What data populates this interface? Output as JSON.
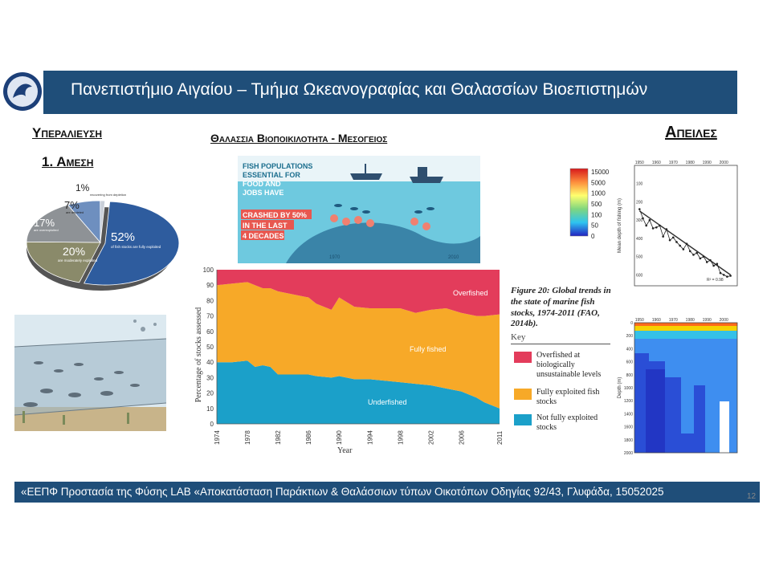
{
  "header": {
    "title": "Πανεπιστήμιο Αιγαίου – Τμήμα Ωκεανογραφίας και Θαλασσίων Βιοεπιστημών"
  },
  "section": {
    "left_title": "Υπεραλιευση",
    "sub_title": "1. Αμεση",
    "center_title": "Θαλασσια Βιοποικιλοτητα - Μεσογειος",
    "right_title": "Απειλες"
  },
  "pie": {
    "slices": [
      {
        "percent": "52%",
        "label": "of fish stocks are fully exploited",
        "value": 52,
        "color": "#2e5c9e"
      },
      {
        "percent": "20%",
        "label": "are moderately exploited",
        "value": 20,
        "color": "#8a8a6a"
      },
      {
        "percent": "17%",
        "label": "are overexploited",
        "value": 17,
        "color": "#8e9296"
      },
      {
        "percent": "7%",
        "label": "are depleted",
        "value": 7,
        "color": "#6e8fbf"
      },
      {
        "percent": "1%",
        "label": "recovering from depletion",
        "value": 1,
        "color": "#c9cfd8"
      }
    ]
  },
  "infographic": {
    "lines": [
      "FISH POPULATIONS",
      "ESSENTIAL FOR",
      "FOOD AND",
      "JOBS HAVE"
    ],
    "highlight_lines": [
      "CRASHED BY 50%",
      "IN THE LAST",
      "4 DECADES"
    ],
    "year_left": "1970",
    "year_right": "2010"
  },
  "chart_data": [
    {
      "type": "area",
      "xlabel": "Year",
      "ylabel": "Percentage of stocks assessed",
      "ylim": [
        0,
        100
      ],
      "yticks": [
        "0",
        "10",
        "20",
        "30",
        "40",
        "50",
        "60",
        "70",
        "80",
        "90",
        "100"
      ],
      "xticks": [
        "1974",
        "1978",
        "1982",
        "1986",
        "1990",
        "1994",
        "1998",
        "2002",
        "2006",
        "2011"
      ],
      "x": [
        1974,
        1976,
        1978,
        1979,
        1980,
        1981,
        1982,
        1984,
        1986,
        1987,
        1989,
        1990,
        1992,
        1994,
        1996,
        1998,
        2000,
        2002,
        2004,
        2006,
        2008,
        2009,
        2011
      ],
      "series": [
        {
          "name": "Underfished",
          "values": [
            40,
            40,
            41,
            37,
            38,
            37,
            32,
            32,
            32,
            31,
            30,
            31,
            29,
            29,
            28,
            27,
            26,
            25,
            23,
            21,
            17,
            14,
            10
          ],
          "color": "#1ba0c9"
        },
        {
          "name": "Fully fished",
          "values": [
            50,
            51,
            51,
            53,
            50,
            51,
            54,
            52,
            50,
            47,
            44,
            51,
            47,
            46,
            47,
            48,
            46,
            49,
            52,
            51,
            53,
            56,
            61
          ],
          "color": "#f7a928"
        },
        {
          "name": "Overfished",
          "values": [
            10,
            9,
            8,
            10,
            12,
            12,
            14,
            16,
            18,
            22,
            26,
            18,
            24,
            25,
            25,
            25,
            28,
            26,
            25,
            28,
            30,
            30,
            29
          ],
          "color": "#e33c5b"
        }
      ],
      "caption": "Figure 20: Global trends in the state of marine fish stocks, 1974-2011 (FAO, 2014b).",
      "key_title": "Key",
      "key": [
        {
          "label": "Overfished at biologically unsustainable levels",
          "color": "#e33c5b"
        },
        {
          "label": "Fully exploited fish stocks",
          "color": "#f7a928"
        },
        {
          "label": "Not fully exploited stocks",
          "color": "#1ba0c9"
        }
      ]
    },
    {
      "type": "scatter",
      "ylabel": "Mean depth of fishing (m)",
      "xticks": [
        "1950",
        "1960",
        "1970",
        "1980",
        "1990",
        "2000"
      ],
      "yticks": [
        "100",
        "200",
        "300",
        "400",
        "500",
        "600"
      ],
      "x": [
        1950,
        1952,
        1954,
        1956,
        1958,
        1960,
        1962,
        1964,
        1966,
        1968,
        1970,
        1972,
        1974,
        1976,
        1978,
        1980,
        1982,
        1984,
        1986,
        1988,
        1990,
        1992,
        1994,
        1996,
        1998,
        2000,
        2002,
        2004
      ],
      "y": [
        240,
        290,
        330,
        300,
        345,
        340,
        330,
        390,
        350,
        410,
        395,
        420,
        440,
        460,
        430,
        470,
        490,
        480,
        510,
        500,
        530,
        520,
        550,
        540,
        590,
        600,
        610,
        605
      ],
      "fit": [
        250,
        600
      ],
      "annotation": "R² = 0.98"
    },
    {
      "type": "heatmap",
      "ylabel": "Depth (m)",
      "xticks": [
        "1950",
        "1960",
        "1970",
        "1980",
        "1990",
        "2000"
      ],
      "yticks": [
        "0",
        "200",
        "400",
        "600",
        "800",
        "1000",
        "1200",
        "1400",
        "1600",
        "1800",
        "2000"
      ],
      "colorbar": [
        "15000",
        "5000",
        "1000",
        "500",
        "100",
        "50",
        "0"
      ]
    }
  ],
  "footer": {
    "text": "«ΕΕΠΦ Προστασία της Φύσης LAB «Αποκατάσταση Παράκτιων & Θαλάσσιων τύπων Οικοτόπων Οδηγίας 92/43, Γλυφάδα, 15052025",
    "page": "12"
  }
}
